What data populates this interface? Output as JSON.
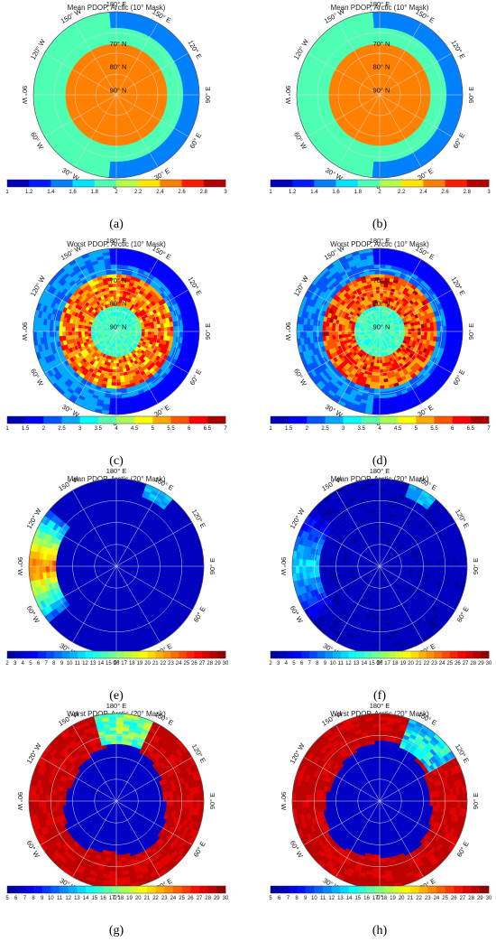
{
  "chart_data": [
    {
      "type": "heatmap",
      "panel": "(a)",
      "title": "Mean PDOP, Arctic (10° Mask)",
      "colorbar": {
        "min": 1,
        "max": 3,
        "ticks": [
          "1",
          "1.2",
          "1.4",
          "1.6",
          "1.8",
          "2",
          "2.2",
          "2.4",
          "2.6",
          "2.8",
          "3"
        ]
      },
      "field": {
        "inner_value": 2.5,
        "outer_value": 1.9,
        "edge_value": 1.5,
        "edge_side": "east"
      },
      "coord_labels": {
        "lat": [
          "70° N",
          "80° N",
          "90° N"
        ],
        "lon": [
          "0°",
          "30° E",
          "60° E",
          "90° E",
          "120° E",
          "150° E",
          "180° E",
          "150° W",
          "120° W",
          "90° W",
          "60° W",
          "30° W"
        ]
      }
    },
    {
      "type": "heatmap",
      "panel": "(b)",
      "title": "Mean PDOP, Arctic (10° Mask)",
      "colorbar": {
        "min": 1,
        "max": 3,
        "ticks": [
          "1",
          "1.2",
          "1.4",
          "1.6",
          "1.8",
          "2",
          "2.2",
          "2.4",
          "2.6",
          "2.8",
          "3"
        ]
      },
      "field": {
        "inner_value": 2.5,
        "outer_value": 1.9,
        "edge_value": 1.45,
        "edge_side": "east"
      },
      "coord_labels": {
        "lat": [
          "70° N",
          "80° N",
          "90° N"
        ],
        "lon": [
          "0°",
          "30° E",
          "60° E",
          "90° E",
          "120° E",
          "150° E",
          "180° E",
          "150° W",
          "120° W",
          "90° W",
          "60° W",
          "30° W"
        ]
      }
    },
    {
      "type": "heatmap",
      "panel": "(c)",
      "title": "Worst PDOP, Arctic (10° Mask)",
      "colorbar": {
        "min": 1,
        "max": 7,
        "ticks": [
          "1",
          "1.5",
          "2",
          "2.5",
          "3",
          "3.5",
          "4",
          "4.5",
          "5",
          "5.5",
          "6",
          "6.5",
          "7"
        ]
      },
      "field": {
        "center_value": 3.6,
        "ring_value": 5.6,
        "outer_value": 2.6,
        "edge_value": 1.5,
        "edge_side": "east"
      },
      "coord_labels": {
        "lat": [
          "70° N",
          "80° N",
          "90° N"
        ],
        "lon": [
          "0°",
          "30° E",
          "60° E",
          "90° E",
          "120° E",
          "150° E",
          "180° E",
          "150° W",
          "120° W",
          "90° W",
          "60° W",
          "30° W"
        ]
      }
    },
    {
      "type": "heatmap",
      "panel": "(d)",
      "title": "Worst PDOP, Arctic (10° Mask)",
      "colorbar": {
        "min": 1,
        "max": 7,
        "ticks": [
          "1",
          "1.5",
          "2",
          "2.5",
          "3",
          "3.5",
          "4",
          "4.5",
          "5",
          "5.5",
          "6",
          "6.5",
          "7"
        ]
      },
      "field": {
        "center_value": 3.6,
        "ring_value": 5.8,
        "outer_value": 2.5,
        "edge_value": 1.5,
        "edge_side": "east"
      },
      "coord_labels": {
        "lat": [
          "70° N",
          "80° N",
          "90° N"
        ],
        "lon": [
          "0°",
          "30° E",
          "60° E",
          "90° E",
          "120° E",
          "150° E",
          "180° E",
          "150° W",
          "120° W",
          "90° W",
          "60° W",
          "30° W"
        ]
      }
    },
    {
      "type": "heatmap",
      "panel": "(e)",
      "title": "Mean PDOP, Arctic (20° Mask)",
      "colorbar": {
        "min": 2,
        "max": 30,
        "ticks": [
          "2",
          "3",
          "4",
          "5",
          "6",
          "7",
          "8",
          "9",
          "10",
          "11",
          "12",
          "13",
          "14",
          "15",
          "16",
          "17",
          "18",
          "19",
          "20",
          "21",
          "22",
          "23",
          "24",
          "25",
          "26",
          "27",
          "28",
          "29",
          "30"
        ]
      },
      "field": {
        "base_value": 3.5,
        "hot_value": 24,
        "hot_side": "west"
      },
      "coord_labels": {
        "lat": [],
        "lon": [
          "0°",
          "30° E",
          "60° E",
          "90° E",
          "120° E",
          "150° E",
          "180° E",
          "150° W",
          "120° W",
          "90° W",
          "60° W",
          "30° W"
        ]
      }
    },
    {
      "type": "heatmap",
      "panel": "(f)",
      "title": "Mean PDOP, Arctic (20° Mask)",
      "colorbar": {
        "min": 2,
        "max": 30,
        "ticks": [
          "2",
          "3",
          "4",
          "5",
          "6",
          "7",
          "8",
          "9",
          "10",
          "11",
          "12",
          "13",
          "14",
          "15",
          "16",
          "17",
          "18",
          "19",
          "20",
          "21",
          "22",
          "23",
          "24",
          "25",
          "26",
          "27",
          "28",
          "29",
          "30"
        ]
      },
      "field": {
        "base_value": 3.3,
        "hot_value": 12,
        "hot_side": "west"
      },
      "coord_labels": {
        "lat": [],
        "lon": [
          "0°",
          "30° E",
          "60° E",
          "90° E",
          "120° E",
          "150° E",
          "180° E",
          "150° W",
          "120° W",
          "90° W",
          "60° W",
          "30° W"
        ]
      }
    },
    {
      "type": "heatmap",
      "panel": "(g)",
      "title": "Worst PDOP, Arctic (20° Mask)",
      "colorbar": {
        "min": 5,
        "max": 30,
        "ticks": [
          "5",
          "6",
          "7",
          "8",
          "9",
          "10",
          "11",
          "12",
          "13",
          "14",
          "15",
          "16",
          "17",
          "18",
          "19",
          "20",
          "21",
          "22",
          "23",
          "24",
          "25",
          "26",
          "27",
          "28",
          "29",
          "30"
        ]
      },
      "field": {
        "center_value": 6,
        "ring_value": 29,
        "patch_value": 17
      },
      "coord_labels": {
        "lat": [],
        "lon": [
          "0°",
          "30° E",
          "60° E",
          "90° E",
          "120° E",
          "150° E",
          "180° E",
          "150° W",
          "120° W",
          "90° W",
          "60° W",
          "30° W"
        ]
      }
    },
    {
      "type": "heatmap",
      "panel": "(h)",
      "title": "Worst PDOP, Arctic (20° Mask)",
      "colorbar": {
        "min": 5,
        "max": 30,
        "ticks": [
          "5",
          "6",
          "7",
          "8",
          "9",
          "10",
          "11",
          "12",
          "13",
          "14",
          "15",
          "16",
          "17",
          "18",
          "19",
          "20",
          "21",
          "22",
          "23",
          "24",
          "25",
          "26",
          "27",
          "28",
          "29",
          "30"
        ]
      },
      "field": {
        "center_value": 6,
        "ring_value": 29,
        "patch_value": 14
      },
      "coord_labels": {
        "lat": [],
        "lon": [
          "0°",
          "30° E",
          "60° E",
          "90° E",
          "120° E",
          "150° E",
          "180° E",
          "150° W",
          "120° W",
          "90° W",
          "60° W",
          "30° W"
        ]
      }
    }
  ]
}
